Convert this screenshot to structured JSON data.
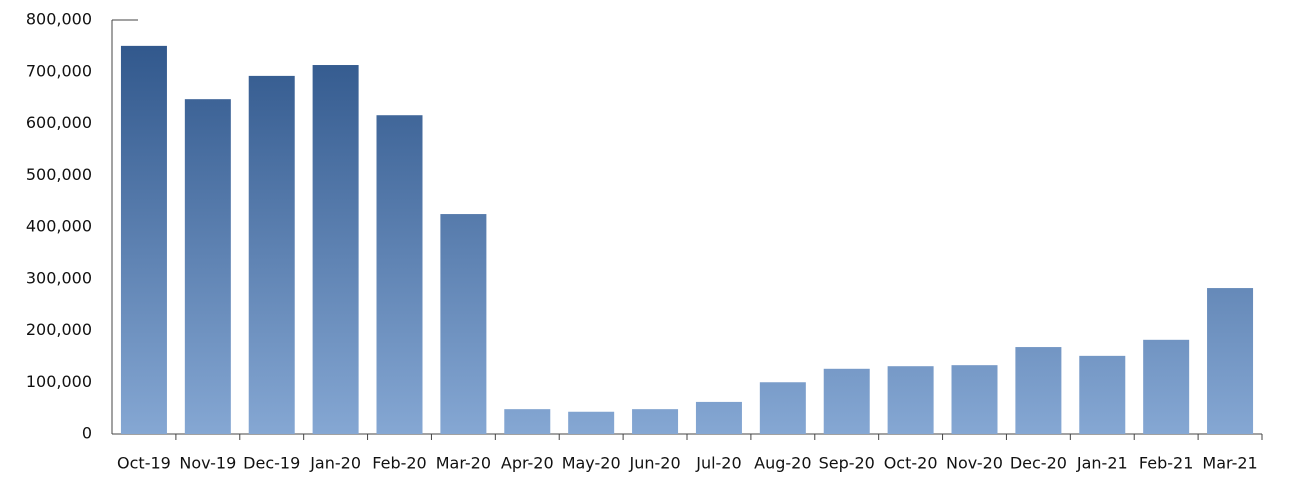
{
  "chart_data": {
    "type": "bar",
    "categories": [
      "Oct-19",
      "Nov-19",
      "Dec-19",
      "Jan-20",
      "Feb-20",
      "Mar-20",
      "Apr-20",
      "May-20",
      "Jun-20",
      "Jul-20",
      "Aug-20",
      "Sep-20",
      "Oct-20",
      "Nov-20",
      "Dec-20",
      "Jan-21",
      "Feb-21",
      "Mar-21"
    ],
    "values": [
      750000,
      647000,
      692000,
      713000,
      616000,
      425000,
      48000,
      43000,
      48000,
      62000,
      100000,
      126000,
      131000,
      133000,
      168000,
      151000,
      182000,
      282000
    ],
    "gradient": [
      "#2c5388",
      "#85a7d3"
    ],
    "ylim": [
      0,
      800000
    ],
    "yticks": [
      0,
      {
        "value": 100000,
        "label": "100,000"
      },
      {
        "value": 200000,
        "label": "200,000"
      },
      {
        "value": 300000,
        "label": "300,000"
      },
      {
        "value": 400000,
        "label": "400,000"
      },
      {
        "value": 500000,
        "label": "500,000"
      },
      {
        "value": 600000,
        "label": "600,000"
      },
      {
        "value": 700000,
        "label": "700,000"
      },
      {
        "value": 800000,
        "label": "800,000"
      }
    ],
    "grid": false
  }
}
